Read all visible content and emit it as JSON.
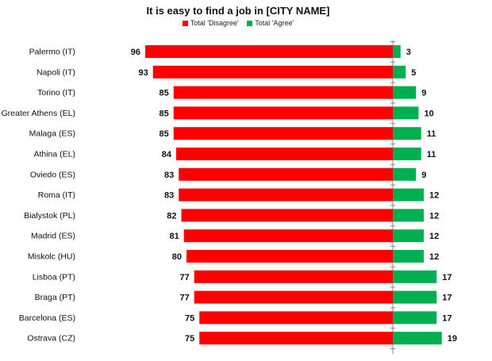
{
  "chart_data": {
    "type": "bar",
    "orientation": "horizontal-diverging",
    "title": "It is easy to find a job in [CITY NAME]",
    "legend_position": "top-center",
    "categories": [
      "Palermo (IT)",
      "Napoli (IT)",
      "Torino (IT)",
      "Greater Athens (EL)",
      "Malaga (ES)",
      "Athina (EL)",
      "Oviedo (ES)",
      "Roma (IT)",
      "Bialystok (PL)",
      "Madrid (ES)",
      "Miskolc (HU)",
      "Lisboa (PT)",
      "Braga (PT)",
      "Barcelona (ES)",
      "Ostrava (CZ)"
    ],
    "series": [
      {
        "name": "Total 'Disagree'",
        "color": "#ff0000",
        "values": [
          96,
          93,
          85,
          85,
          85,
          84,
          83,
          83,
          82,
          81,
          80,
          77,
          77,
          75,
          75
        ]
      },
      {
        "name": "Total 'Agree'",
        "color": "#00b050",
        "values": [
          3,
          5,
          9,
          10,
          11,
          11,
          9,
          12,
          12,
          12,
          12,
          17,
          17,
          17,
          19
        ]
      }
    ],
    "grid": false
  }
}
